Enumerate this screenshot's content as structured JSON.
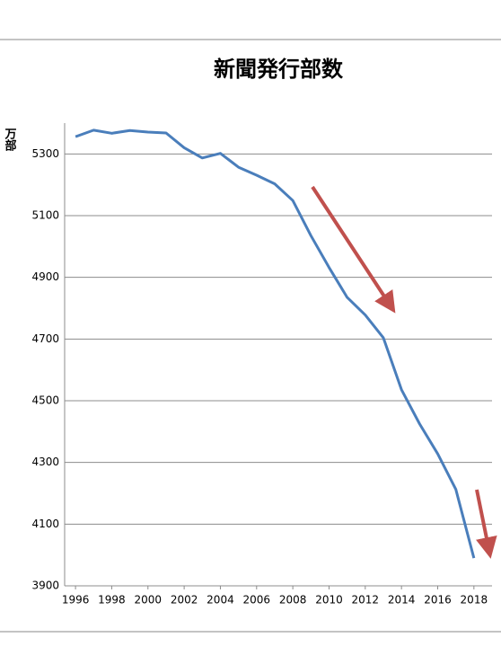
{
  "chart_data": {
    "type": "line",
    "title": "新聞発行部数",
    "y_label": "万部",
    "x": [
      1996,
      1997,
      1998,
      1999,
      2000,
      2001,
      2002,
      2003,
      2004,
      2005,
      2006,
      2007,
      2008,
      2009,
      2010,
      2011,
      2012,
      2013,
      2014,
      2015,
      2016,
      2017,
      2018
    ],
    "series": [
      {
        "name": "新聞発行部数",
        "color": "#4a7ebb",
        "values": [
          5356,
          5377,
          5367,
          5376,
          5371,
          5368,
          5320,
          5287,
          5302,
          5257,
          5231,
          5203,
          5149,
          5035,
          4932,
          4835,
          4778,
          4704,
          4536,
          4425,
          4328,
          4213,
          3990
        ]
      }
    ],
    "xlim": [
      1995.4,
      2019
    ],
    "xticks": [
      1996,
      1998,
      2000,
      2002,
      2004,
      2006,
      2008,
      2010,
      2012,
      2014,
      2016,
      2018
    ],
    "ylim": [
      3900,
      5400
    ],
    "yticks": [
      3900,
      4100,
      4300,
      4500,
      4700,
      4900,
      5100,
      5300
    ],
    "grid": true
  }
}
